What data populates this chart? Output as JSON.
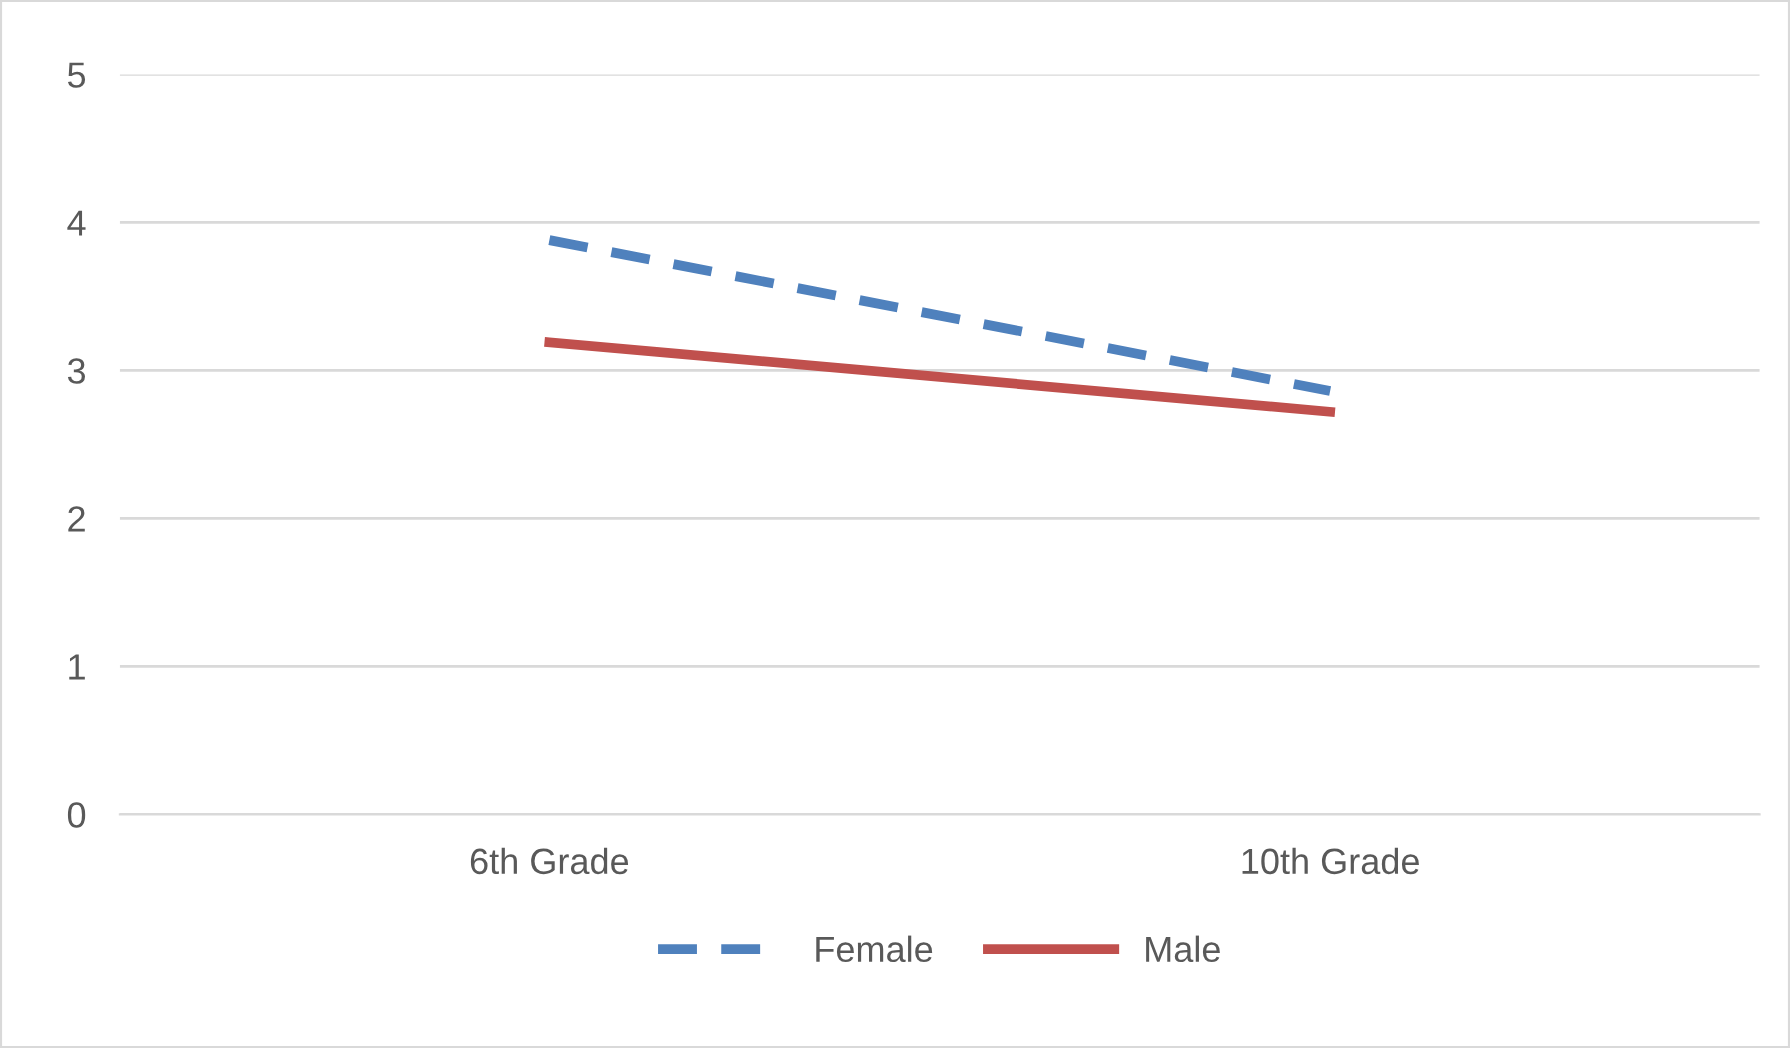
{
  "chart_data": {
    "type": "line",
    "categories": [
      "6th Grade",
      "10th Grade"
    ],
    "series": [
      {
        "name": "Female",
        "color": "#4f81bd",
        "values": [
          3.88,
          2.86
        ],
        "line_style": "dashed"
      },
      {
        "name": "Male",
        "color": "#c0504d",
        "values": [
          3.19,
          2.72
        ],
        "line_style": "solid"
      }
    ],
    "ylim": [
      0,
      5
    ],
    "yticks": [
      0,
      1,
      2,
      3,
      4,
      5
    ],
    "grid": "y",
    "legend": "bottom",
    "marker": "none"
  }
}
